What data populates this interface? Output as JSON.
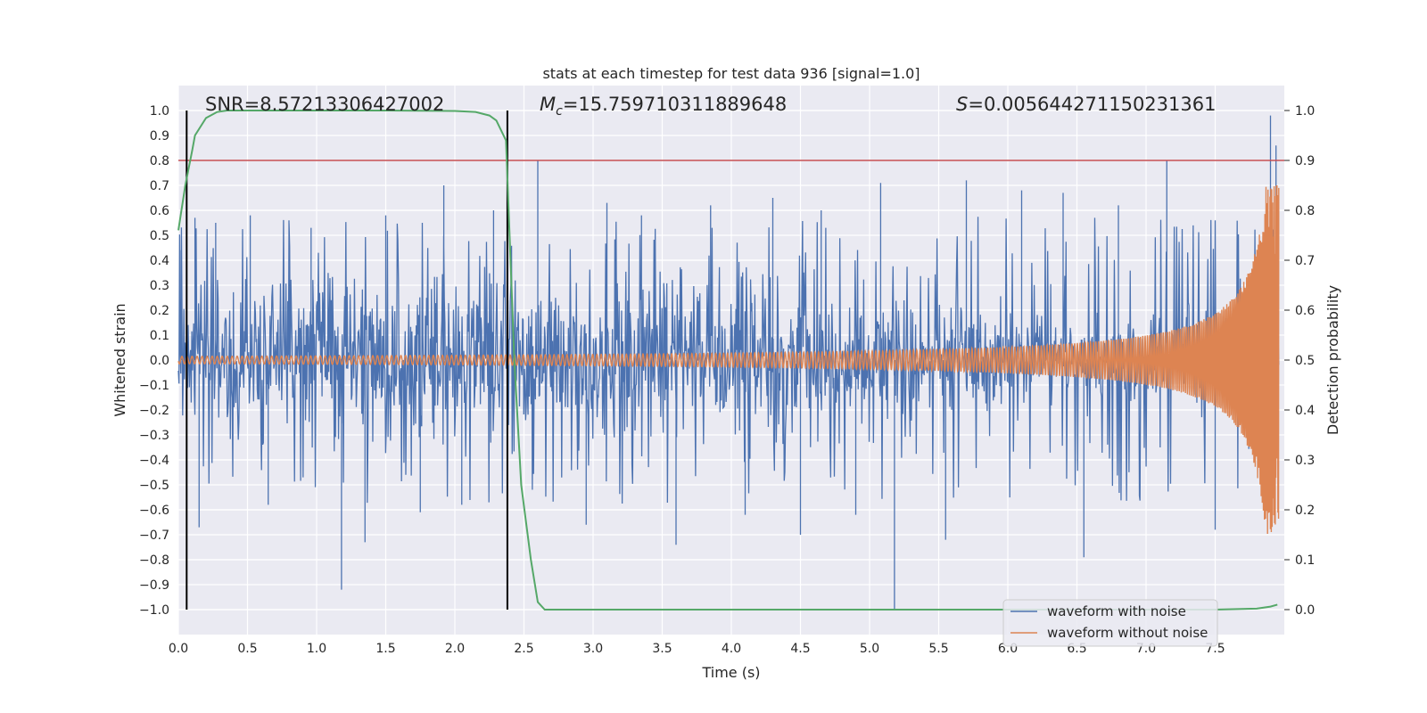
{
  "chart_data": {
    "type": "line",
    "title": "stats at each timestep for test data 936 [signal=1.0]",
    "xlabel": "Time (s)",
    "ylabel": "Whitened strain",
    "y2label": "Detection probability",
    "xlim": [
      0.0,
      8.0
    ],
    "ylim": [
      -1.1,
      1.1
    ],
    "y2lim": [
      -0.05,
      1.05
    ],
    "xticks": [
      "0.0",
      "0.5",
      "1.0",
      "1.5",
      "2.0",
      "2.5",
      "3.0",
      "3.5",
      "4.0",
      "4.5",
      "5.0",
      "5.5",
      "6.0",
      "6.5",
      "7.0",
      "7.5"
    ],
    "yticks": [
      "1.0",
      "0.9",
      "0.8",
      "0.7",
      "0.6",
      "0.5",
      "0.4",
      "0.3",
      "0.2",
      "0.1",
      "0.0",
      "−0.1",
      "−0.2",
      "−0.3",
      "−0.4",
      "−0.5",
      "−0.6",
      "−0.7",
      "−0.8",
      "−0.9",
      "−1.0"
    ],
    "y2ticks": [
      "1.0",
      "0.9",
      "0.8",
      "0.7",
      "0.6",
      "0.5",
      "0.4",
      "0.3",
      "0.2",
      "0.1",
      "0.0"
    ],
    "grid": true,
    "legend": "lower-right",
    "annotations": {
      "snr": "SNR=8.57213306427002",
      "mc_symbol": "M",
      "mc_subscript": "c",
      "mc_value": "=15.759710311889648",
      "s_symbol": "S",
      "s_value": "=0.005644271150231361"
    },
    "series": [
      {
        "name": "waveform with noise",
        "color": "#4c72b0",
        "description_kind": "noisy strain",
        "peaks": [
          [
            0.02,
            0.44
          ],
          [
            0.12,
            0.57
          ],
          [
            0.15,
            -0.67
          ],
          [
            0.27,
            0.55
          ],
          [
            0.52,
            0.58
          ],
          [
            0.65,
            -0.58
          ],
          [
            0.8,
            0.56
          ],
          [
            0.96,
            0.53
          ],
          [
            1.18,
            -0.92
          ],
          [
            1.35,
            -0.73
          ],
          [
            1.5,
            0.58
          ],
          [
            1.75,
            -0.61
          ],
          [
            1.92,
            0.7
          ],
          [
            2.05,
            -0.58
          ],
          [
            2.28,
            0.6
          ],
          [
            2.6,
            0.8
          ],
          [
            2.95,
            -0.66
          ],
          [
            3.1,
            0.63
          ],
          [
            3.35,
            0.58
          ],
          [
            3.6,
            -0.74
          ],
          [
            3.85,
            0.62
          ],
          [
            4.1,
            -0.62
          ],
          [
            4.3,
            0.65
          ],
          [
            4.5,
            -0.7
          ],
          [
            4.65,
            0.6
          ],
          [
            4.9,
            -0.62
          ],
          [
            5.08,
            0.71
          ],
          [
            5.18,
            -1.0
          ],
          [
            5.55,
            -0.72
          ],
          [
            5.7,
            0.72
          ],
          [
            6.1,
            0.68
          ],
          [
            6.4,
            0.67
          ],
          [
            6.55,
            -0.79
          ],
          [
            6.8,
            0.62
          ],
          [
            7.15,
            0.8
          ],
          [
            7.5,
            -0.68
          ],
          [
            7.9,
            0.98
          ],
          [
            7.94,
            0.86
          ]
        ]
      },
      {
        "name": "waveform without noise",
        "color": "#dd8452",
        "description_kind": "chirp",
        "start_amplitude": 0.015,
        "end_amplitude": 0.7,
        "end_time": 7.96
      },
      {
        "name": "",
        "color": "#55a868",
        "axis": "right",
        "x": [
          0.0,
          0.05,
          0.1,
          0.12,
          0.2,
          0.28,
          0.35,
          0.5,
          1.0,
          1.5,
          2.0,
          2.15,
          2.25,
          2.3,
          2.37,
          2.43,
          2.48,
          2.55,
          2.6,
          2.65,
          2.8,
          3.5,
          5.0,
          7.5,
          7.8,
          7.9,
          7.95
        ],
        "y": [
          0.76,
          0.85,
          0.92,
          0.95,
          0.985,
          0.997,
          1.0,
          1.0,
          1.0,
          1.0,
          0.999,
          0.997,
          0.99,
          0.98,
          0.94,
          0.5,
          0.25,
          0.1,
          0.015,
          0.0,
          0.0,
          0.0,
          0.0,
          0.0,
          0.002,
          0.006,
          0.01
        ]
      }
    ],
    "hlines": [
      {
        "y2": 0.9,
        "color": "#c44e52"
      }
    ],
    "vlines": [
      {
        "x": 0.06,
        "color": "#000000"
      },
      {
        "x": 2.38,
        "color": "#000000"
      }
    ]
  }
}
